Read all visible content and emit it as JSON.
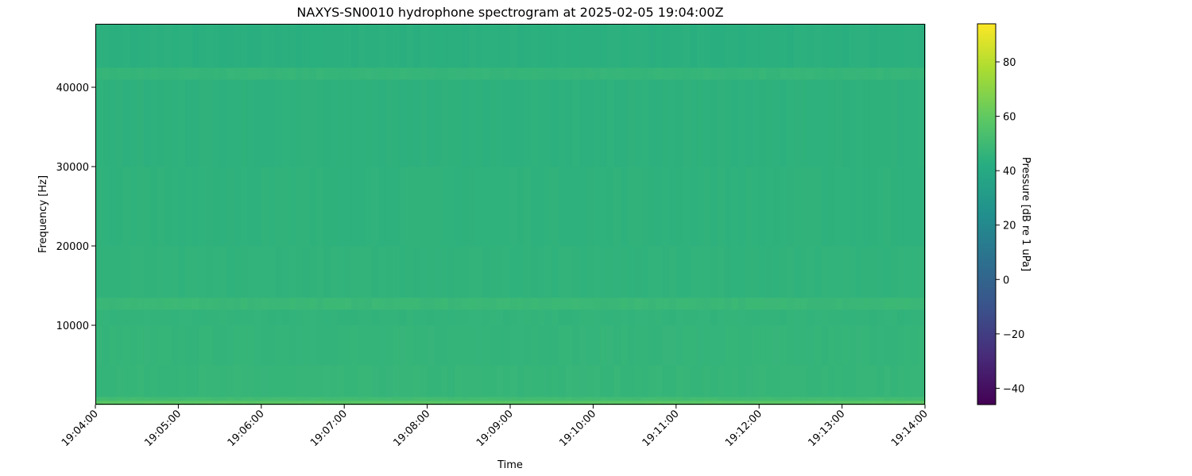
{
  "chart_data": {
    "type": "heatmap",
    "title": "NAXYS-SN0010 hydrophone spectrogram at 2025-02-05 19:04:00Z",
    "xlabel": "Time",
    "ylabel": "Frequency [Hz]",
    "colorbar_label": "Pressure [dB re 1 uPa]",
    "colormap": "viridis",
    "xlim": [
      "19:04:00",
      "19:14:00"
    ],
    "x_ticks": [
      "19:04:00",
      "19:05:00",
      "19:06:00",
      "19:07:00",
      "19:08:00",
      "19:09:00",
      "19:10:00",
      "19:11:00",
      "19:12:00",
      "19:13:00",
      "19:14:00"
    ],
    "ylim": [
      0,
      48000
    ],
    "y_ticks": [
      10000,
      20000,
      30000,
      40000
    ],
    "y_tick_labels": [
      "10000",
      "20000",
      "30000",
      "40000"
    ],
    "clim": [
      -46,
      94
    ],
    "colorbar_ticks": [
      -40,
      -20,
      0,
      20,
      40,
      60,
      80
    ],
    "colorbar_tick_labels": [
      "−40",
      "−20",
      "0",
      "20",
      "40",
      "60",
      "80"
    ],
    "frequency_bands_hz": [
      [
        0,
        500
      ],
      [
        500,
        1000
      ],
      [
        1000,
        5000
      ],
      [
        5000,
        10000
      ],
      [
        10000,
        12000
      ],
      [
        12000,
        13500
      ],
      [
        13500,
        20000
      ],
      [
        20000,
        30000
      ],
      [
        30000,
        41000
      ],
      [
        41000,
        42500
      ],
      [
        42500,
        48000
      ]
    ],
    "band_levels_db": [
      58,
      51,
      47,
      46.5,
      46,
      48.5,
      45.5,
      45,
      44.5,
      47,
      43.5
    ]
  }
}
